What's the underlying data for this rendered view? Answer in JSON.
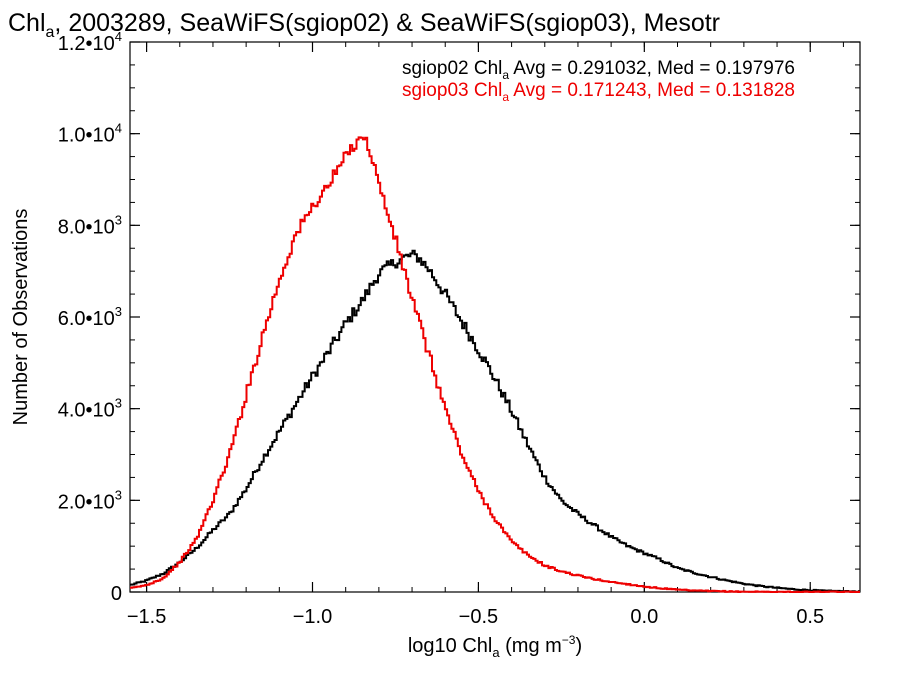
{
  "chart_data": {
    "type": "line",
    "step": true,
    "title": {
      "base": "Chl",
      "sub": "a",
      "rest": ", 2003289, SeaWiFS(sgiop02) & SeaWiFS(sgiop03), Mesotr"
    },
    "xlabel": {
      "base": "log10 Chl",
      "sub": "a",
      "rest": " (mg m",
      "sup": "−3",
      "end": ")"
    },
    "ylabel": "Number of Observations",
    "xlim": [
      -1.55,
      0.65
    ],
    "ylim": [
      0,
      12000
    ],
    "xticks": [
      {
        "value": -1.5,
        "label": "−1.5"
      },
      {
        "value": -1.0,
        "label": "−1.0"
      },
      {
        "value": -0.5,
        "label": "−0.5"
      },
      {
        "value": 0.0,
        "label": "0.0"
      },
      {
        "value": 0.5,
        "label": "0.5"
      }
    ],
    "yticks": [
      {
        "value": 0,
        "mant": "0",
        "exp": ""
      },
      {
        "value": 2000,
        "mant": "2.0•10",
        "exp": "3"
      },
      {
        "value": 4000,
        "mant": "4.0•10",
        "exp": "3"
      },
      {
        "value": 6000,
        "mant": "6.0•10",
        "exp": "3"
      },
      {
        "value": 8000,
        "mant": "8.0•10",
        "exp": "3"
      },
      {
        "value": 10000,
        "mant": "1.0•10",
        "exp": "4"
      },
      {
        "value": 12000,
        "mant": "1.2•10",
        "exp": "4"
      }
    ],
    "legend": [
      {
        "pre": "sgiop02 Chl",
        "sub": "a",
        "post": " Avg = 0.291032, Med = 0.197976",
        "color": "#000000"
      },
      {
        "pre": "sgiop03 Chl",
        "sub": "a",
        "post": " Avg = 0.171243, Med = 0.131828",
        "color": "#ee0000"
      }
    ],
    "legend_position": "top-right",
    "series": [
      {
        "name": "sgiop02",
        "color": "#000000",
        "x": [
          -1.55,
          -1.5,
          -1.45,
          -1.4,
          -1.35,
          -1.3,
          -1.25,
          -1.2,
          -1.15,
          -1.1,
          -1.05,
          -1.0,
          -0.95,
          -0.9,
          -0.85,
          -0.8,
          -0.75,
          -0.72,
          -0.7,
          -0.68,
          -0.65,
          -0.6,
          -0.55,
          -0.5,
          -0.45,
          -0.4,
          -0.35,
          -0.3,
          -0.25,
          -0.2,
          -0.15,
          -0.1,
          -0.05,
          0.0,
          0.05,
          0.1,
          0.15,
          0.2,
          0.25,
          0.3,
          0.35,
          0.4,
          0.45,
          0.5,
          0.55,
          0.6,
          0.65
        ],
        "y": [
          150,
          250,
          400,
          650,
          950,
          1350,
          1700,
          2250,
          2900,
          3500,
          4100,
          4700,
          5250,
          5850,
          6350,
          6950,
          7200,
          7300,
          7350,
          7300,
          7050,
          6500,
          5900,
          5300,
          4650,
          3950,
          3200,
          2500,
          2000,
          1700,
          1450,
          1200,
          1000,
          850,
          700,
          520,
          420,
          330,
          250,
          180,
          130,
          90,
          60,
          40,
          25,
          15,
          10
        ]
      },
      {
        "name": "sgiop03",
        "color": "#ee0000",
        "x": [
          -1.55,
          -1.5,
          -1.45,
          -1.4,
          -1.35,
          -1.3,
          -1.25,
          -1.2,
          -1.15,
          -1.1,
          -1.05,
          -1.0,
          -0.95,
          -0.9,
          -0.87,
          -0.85,
          -0.82,
          -0.8,
          -0.75,
          -0.7,
          -0.65,
          -0.6,
          -0.55,
          -0.5,
          -0.45,
          -0.4,
          -0.35,
          -0.3,
          -0.25,
          -0.2,
          -0.15,
          -0.1,
          -0.05,
          0.0,
          0.05,
          0.1,
          0.15,
          0.2,
          0.25,
          0.3,
          0.35,
          0.4,
          0.5,
          0.6,
          0.65
        ],
        "y": [
          80,
          150,
          300,
          650,
          1150,
          2000,
          3000,
          4300,
          5600,
          6800,
          7800,
          8400,
          8900,
          9500,
          9800,
          10000,
          9500,
          8900,
          7700,
          6400,
          5200,
          4000,
          3000,
          2200,
          1600,
          1100,
          800,
          580,
          450,
          360,
          280,
          220,
          170,
          120,
          80,
          50,
          30,
          20,
          12,
          8,
          5,
          3,
          2,
          1,
          1
        ]
      }
    ]
  }
}
